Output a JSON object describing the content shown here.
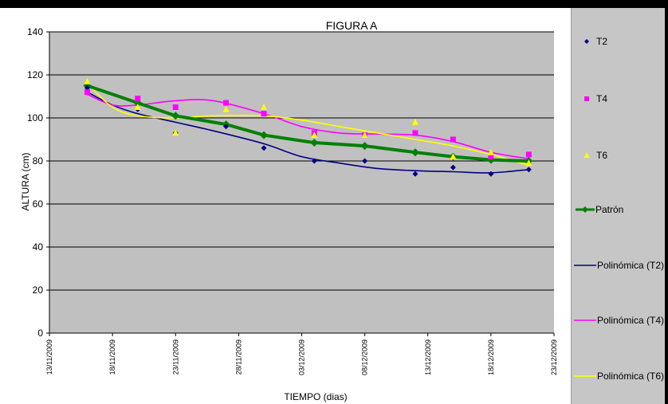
{
  "chart_data": {
    "type": "line",
    "title": "FIGURA A",
    "xlabel": "TIEMPO (dias)",
    "ylabel": "ALTURA (cm)",
    "ylim": [
      0,
      140
    ],
    "yticks": [
      0,
      20,
      40,
      60,
      80,
      100,
      120,
      140
    ],
    "xlim": [
      "2009-11-13",
      "2009-12-23"
    ],
    "xtick_labels": [
      "13/11/2009",
      "18/11/2009",
      "23/11/2009",
      "28/11/2009",
      "03/12/2009",
      "08/12/2009",
      "13/12/2009",
      "18/12/2009",
      "23/12/2009"
    ],
    "grid": "horizontal",
    "plot_background": "#c0c0c0",
    "legend_position": "right",
    "series": [
      {
        "name": "T2",
        "kind": "points",
        "marker": "diamond",
        "color": "#000080",
        "x": [
          "2009-11-16",
          "2009-11-20",
          "2009-11-23",
          "2009-11-27",
          "2009-11-30",
          "2009-12-04",
          "2009-12-08",
          "2009-12-12",
          "2009-12-15",
          "2009-12-18",
          "2009-12-21"
        ],
        "values": [
          114,
          104,
          93,
          96,
          86,
          80,
          80,
          74,
          77,
          74,
          76
        ]
      },
      {
        "name": "T4",
        "kind": "points",
        "marker": "square",
        "color": "#ff00ff",
        "x": [
          "2009-11-16",
          "2009-11-20",
          "2009-11-23",
          "2009-11-27",
          "2009-11-30",
          "2009-12-04",
          "2009-12-08",
          "2009-12-12",
          "2009-12-15",
          "2009-12-18",
          "2009-12-21"
        ],
        "values": [
          112,
          109,
          105,
          107,
          102,
          93,
          92,
          93,
          90,
          82,
          83
        ]
      },
      {
        "name": "T6",
        "kind": "points",
        "marker": "triangle",
        "color": "#ffff00",
        "x": [
          "2009-11-16",
          "2009-11-20",
          "2009-11-23",
          "2009-11-27",
          "2009-11-30",
          "2009-12-04",
          "2009-12-08",
          "2009-12-12",
          "2009-12-15",
          "2009-12-18",
          "2009-12-21"
        ],
        "values": [
          117,
          105,
          93,
          104,
          105,
          92,
          92,
          98,
          82,
          84,
          79
        ]
      },
      {
        "name": "Patrón",
        "kind": "line-markers",
        "marker": "diamond",
        "color": "#008000",
        "x": [
          "2009-11-16",
          "2009-11-20",
          "2009-11-23",
          "2009-11-27",
          "2009-11-30",
          "2009-12-04",
          "2009-12-08",
          "2009-12-12",
          "2009-12-15",
          "2009-12-18",
          "2009-12-21"
        ],
        "values": [
          115,
          107,
          101,
          97,
          92,
          88.5,
          87,
          84,
          82,
          80.5,
          80
        ]
      },
      {
        "name": "Polinómica (T2)",
        "kind": "trend",
        "color": "#000080",
        "x": [
          "2009-11-16",
          "2009-11-18",
          "2009-11-20",
          "2009-11-23",
          "2009-11-26",
          "2009-11-30",
          "2009-12-03",
          "2009-12-06",
          "2009-12-09",
          "2009-12-12",
          "2009-12-15",
          "2009-12-18",
          "2009-12-21"
        ],
        "values": [
          112,
          106,
          102,
          98,
          94,
          88,
          82,
          79,
          76.5,
          75.5,
          75,
          74.5,
          76
        ]
      },
      {
        "name": "Polinómica (T4)",
        "kind": "trend",
        "color": "#ff00ff",
        "x": [
          "2009-11-16",
          "2009-11-18",
          "2009-11-20",
          "2009-11-23",
          "2009-11-26",
          "2009-11-30",
          "2009-12-03",
          "2009-12-06",
          "2009-12-09",
          "2009-12-12",
          "2009-12-15",
          "2009-12-18",
          "2009-12-21"
        ],
        "values": [
          111,
          106,
          106,
          108,
          108,
          102,
          96,
          93,
          92.5,
          92,
          89,
          84,
          81
        ]
      },
      {
        "name": "Polinómica (T6)",
        "kind": "trend",
        "color": "#ffff00",
        "x": [
          "2009-11-16",
          "2009-11-18",
          "2009-11-20",
          "2009-11-23",
          "2009-11-26",
          "2009-11-30",
          "2009-12-03",
          "2009-12-06",
          "2009-12-09",
          "2009-12-12",
          "2009-12-15",
          "2009-12-18",
          "2009-12-21"
        ],
        "values": [
          116,
          105,
          101,
          100,
          101,
          101,
          99,
          96,
          93,
          90,
          87,
          83,
          78
        ]
      }
    ]
  }
}
